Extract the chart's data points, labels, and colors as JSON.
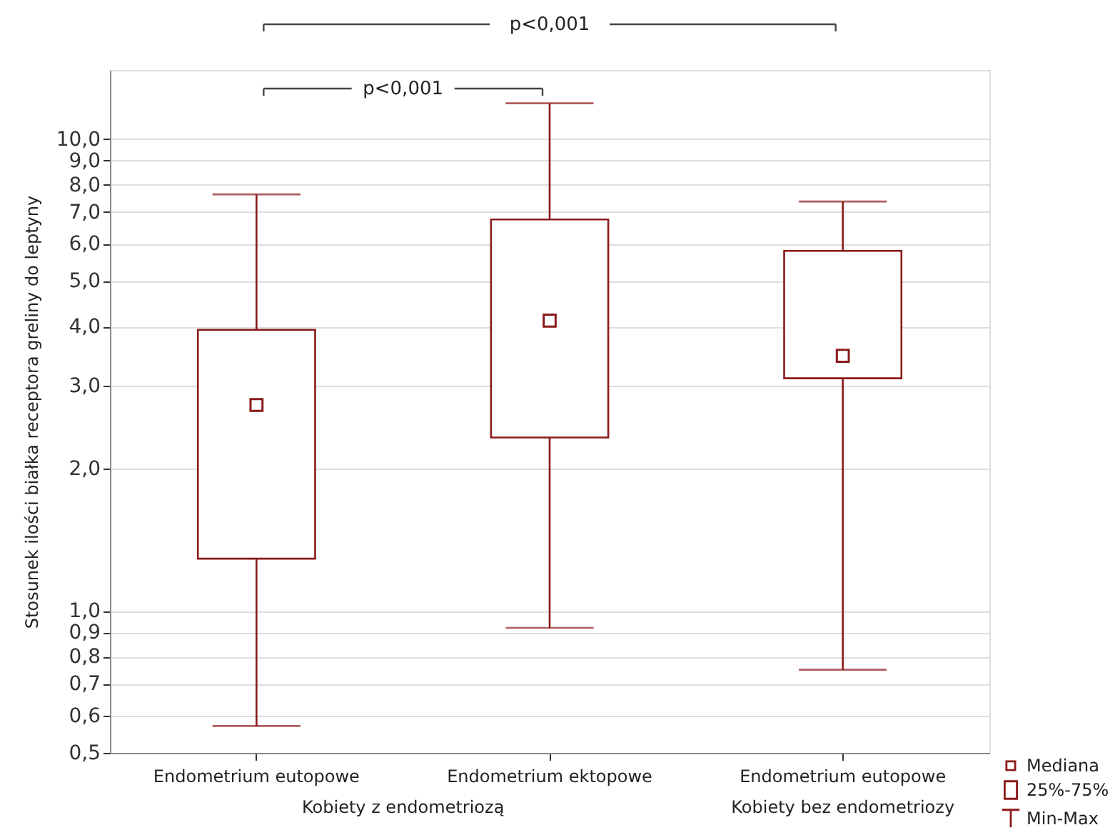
{
  "chart_data": {
    "type": "box",
    "categories": [
      "Endometrium eutopowe",
      "Endometrium ektopowe",
      "Endometrium eutopowe"
    ],
    "ylabel": "Stosunek ilości białka receptora greliny do leptyny",
    "series": [
      {
        "color": "#8b1a1a",
        "boxes": [
          {
            "low": 0.57,
            "q1": 1.29,
            "median": 2.73,
            "q3": 3.94,
            "high": 7.63
          },
          {
            "low": 0.92,
            "q1": 2.33,
            "median": 4.12,
            "q3": 6.75,
            "high": 11.9
          },
          {
            "low": 0.75,
            "q1": 3.11,
            "median": 3.47,
            "q3": 5.79,
            "high": 7.37
          }
        ]
      }
    ],
    "log": true,
    "ylim": [
      0.5,
      14
    ],
    "yticks": [
      {
        "value": 0.5,
        "label": "0,5"
      },
      {
        "value": 0.6,
        "label": "0,6"
      },
      {
        "value": 0.7,
        "label": "0,7"
      },
      {
        "value": 0.8,
        "label": "0,8"
      },
      {
        "value": 0.9,
        "label": "0,9"
      },
      {
        "value": 1,
        "label": "1,0"
      },
      {
        "value": 2,
        "label": "2,0"
      },
      {
        "value": 3,
        "label": "3,0"
      },
      {
        "value": 4,
        "label": "4,0"
      },
      {
        "value": 5,
        "label": "5,0"
      },
      {
        "value": 6,
        "label": "6,0"
      },
      {
        "value": 7,
        "label": "7,0"
      },
      {
        "value": 8,
        "label": "8,0"
      },
      {
        "value": 9,
        "label": "9,0"
      },
      {
        "value": 10,
        "label": "10,0"
      }
    ],
    "grid": "y",
    "annotations": [
      "p<0,001",
      "p<0,001",
      "Kobiety z endometriozą",
      "Kobiety bez endometriozy",
      "Mediana",
      "25%-75%",
      "Min-Max"
    ]
  }
}
